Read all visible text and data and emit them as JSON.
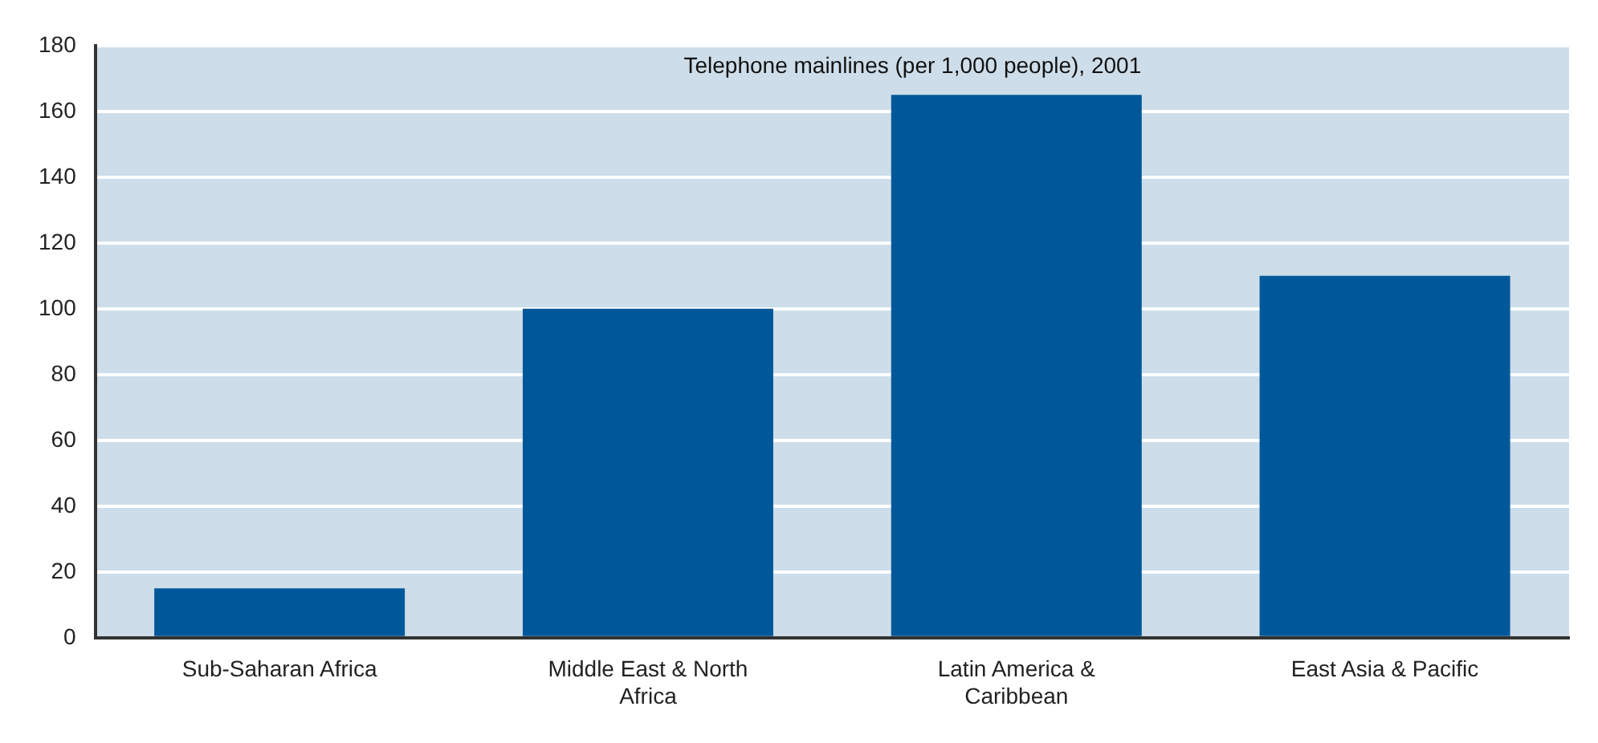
{
  "chart_data": {
    "type": "bar",
    "title": "Telephone mainlines (per 1,000 people), 2001",
    "categories": [
      "Sub-Saharan Africa",
      "Middle East & North Africa",
      "Latin America & Caribbean",
      "East Asia & Pacific"
    ],
    "values": [
      15,
      100,
      165,
      110
    ],
    "color": "#00589a",
    "ylim": [
      0,
      180
    ],
    "yticks": [
      0,
      20,
      40,
      60,
      80,
      100,
      120,
      140,
      160,
      180
    ],
    "grid": "y"
  }
}
